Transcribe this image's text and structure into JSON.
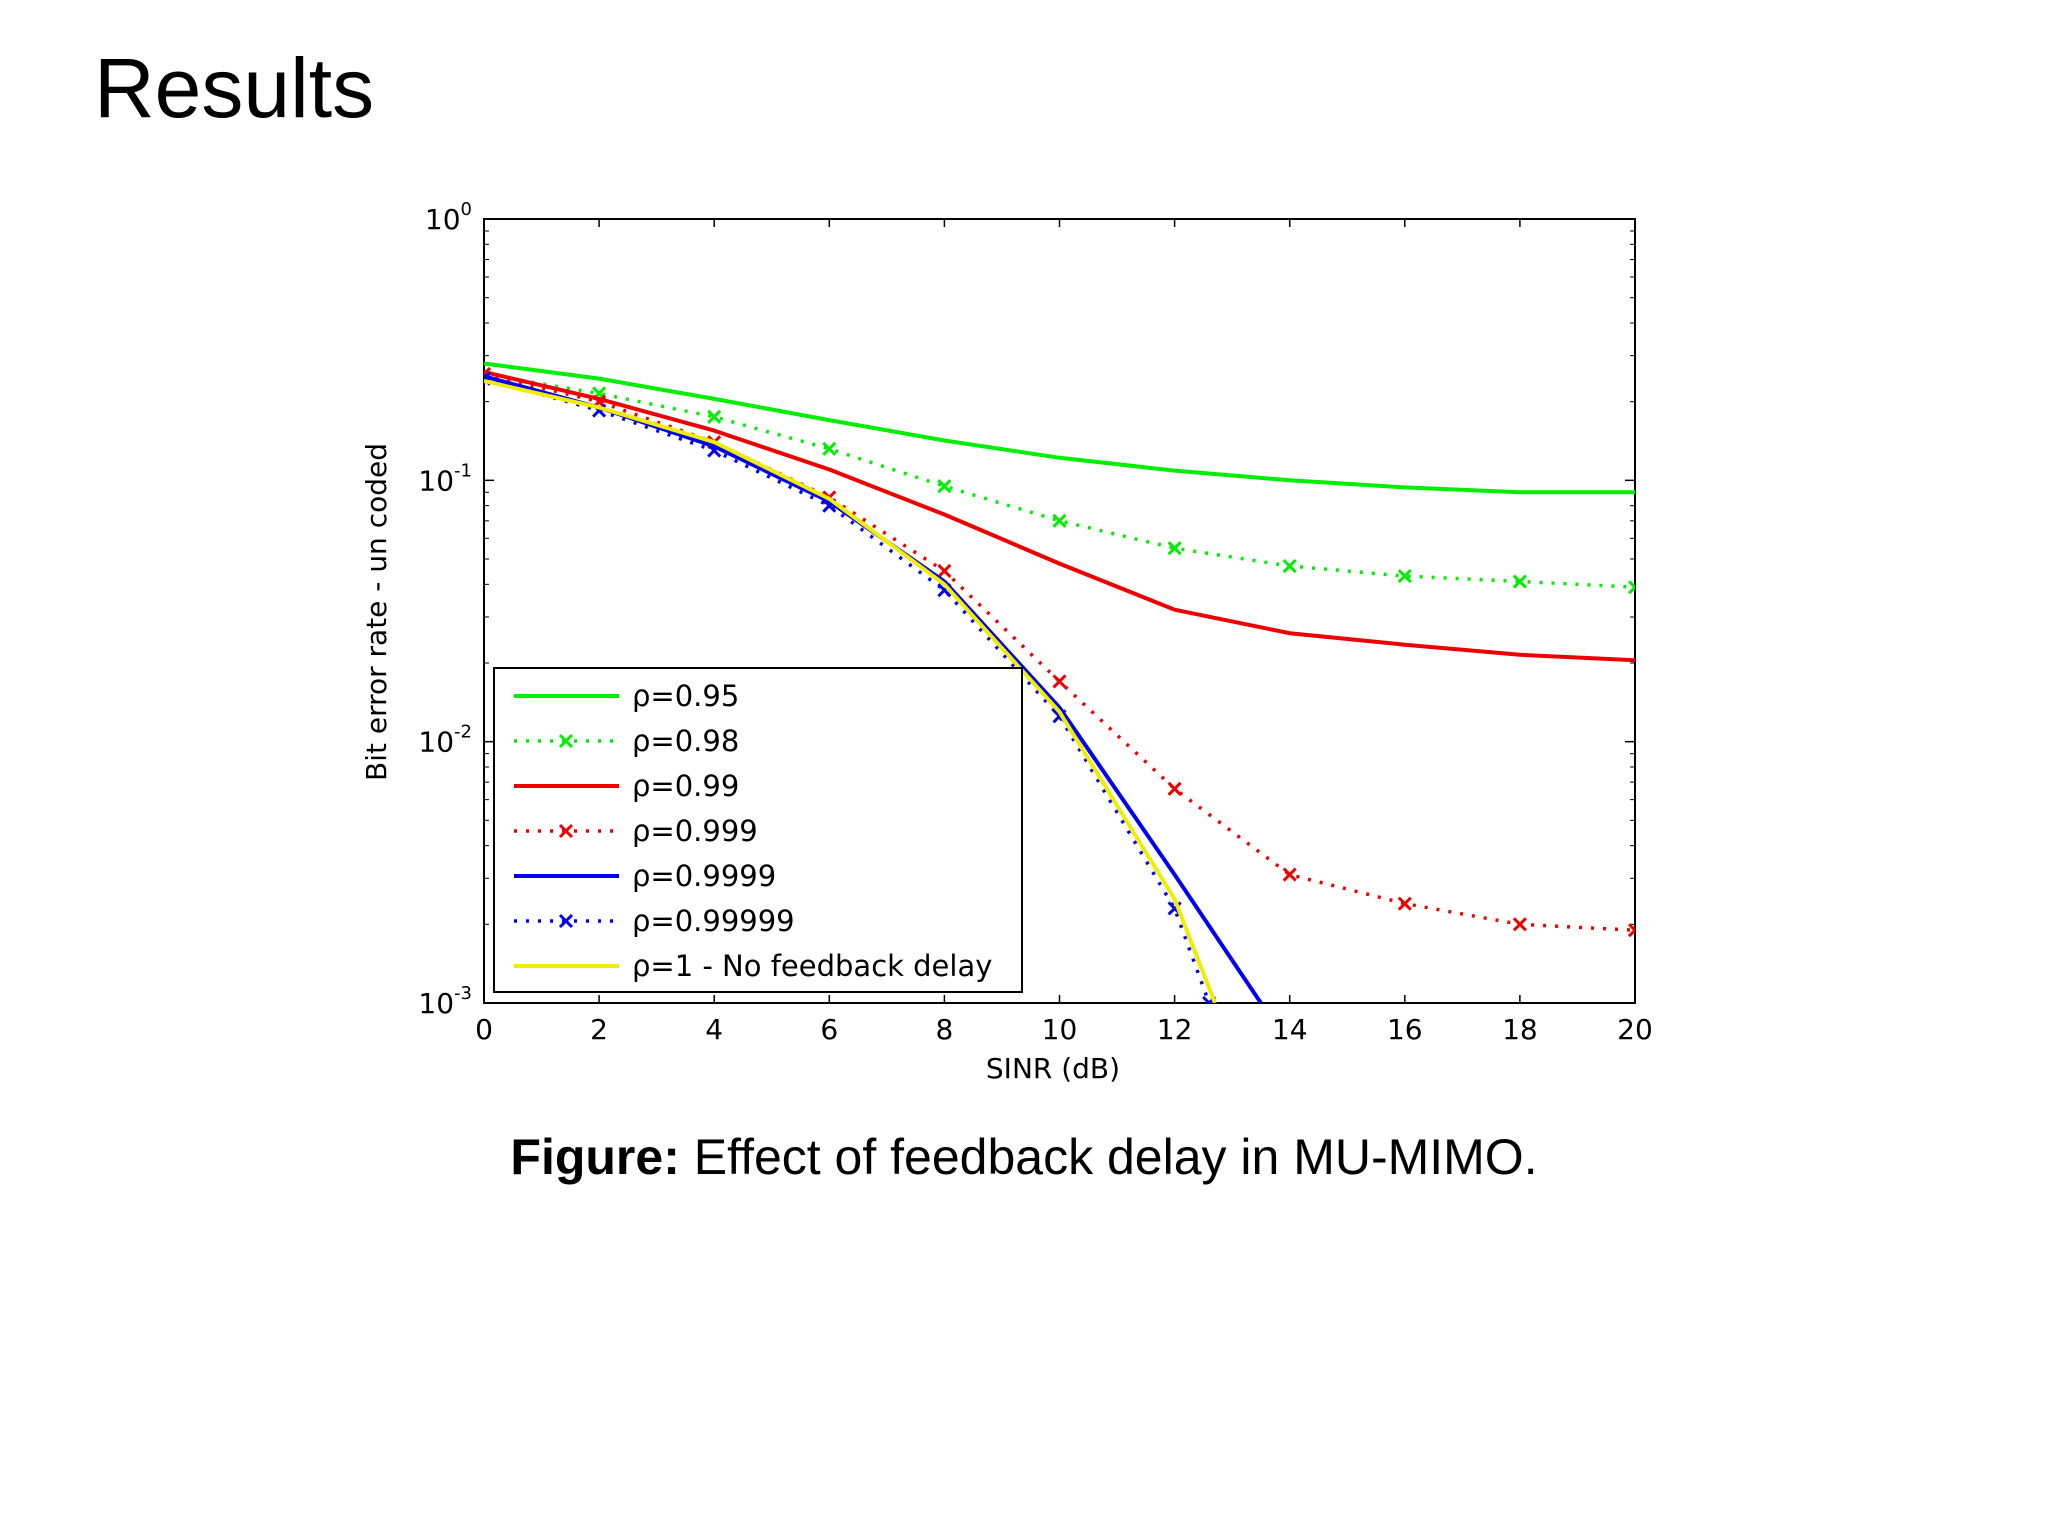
{
  "slide": {
    "title": "Results",
    "caption_label": "Figure:",
    "caption_text": " Effect of feedback delay in MU-MIMO."
  },
  "chart_data": {
    "type": "line",
    "title": "",
    "xlabel": "SINR (dB)",
    "ylabel": "Bit error rate - un coded",
    "x_scale": "linear",
    "y_scale": "log",
    "xlim": [
      0,
      20
    ],
    "ylim": [
      0.001,
      1
    ],
    "x_ticks": [
      0,
      2,
      4,
      6,
      8,
      10,
      12,
      14,
      16,
      18,
      20
    ],
    "y_tick_labels": [
      {
        "base": "10",
        "exp": "0",
        "value": 1
      },
      {
        "base": "10",
        "exp": "-1",
        "value": 0.1
      },
      {
        "base": "10",
        "exp": "-2",
        "value": 0.01
      },
      {
        "base": "10",
        "exp": "-3",
        "value": 0.001
      }
    ],
    "grid": false,
    "legend_position": "bottom-left",
    "series": [
      {
        "name": "ρ=0.95",
        "color": "#00ee00",
        "style": "solid",
        "marker": "none",
        "x": [
          0,
          2,
          4,
          6,
          8,
          10,
          12,
          14,
          16,
          18,
          20
        ],
        "y": [
          0.28,
          0.245,
          0.205,
          0.17,
          0.142,
          0.122,
          0.109,
          0.1,
          0.094,
          0.09,
          0.09
        ]
      },
      {
        "name": "ρ=0.98",
        "color": "#00ee00",
        "style": "dotted",
        "marker": "x",
        "x": [
          0,
          2,
          4,
          6,
          8,
          10,
          12,
          14,
          16,
          18,
          20
        ],
        "y": [
          0.255,
          0.215,
          0.175,
          0.132,
          0.095,
          0.07,
          0.055,
          0.047,
          0.043,
          0.041,
          0.039
        ]
      },
      {
        "name": "ρ=0.99",
        "color": "#ee0000",
        "style": "solid",
        "marker": "none",
        "x": [
          0,
          2,
          4,
          6,
          8,
          10,
          12,
          14,
          16,
          18,
          20
        ],
        "y": [
          0.26,
          0.205,
          0.155,
          0.11,
          0.074,
          0.048,
          0.032,
          0.026,
          0.0235,
          0.0215,
          0.0205
        ]
      },
      {
        "name": "ρ=0.999",
        "color": "#ee0000",
        "style": "dotted",
        "marker": "x",
        "x": [
          0,
          2,
          4,
          6,
          8,
          10,
          12,
          14,
          16,
          18,
          20
        ],
        "y": [
          0.255,
          0.2,
          0.14,
          0.086,
          0.045,
          0.017,
          0.0066,
          0.0031,
          0.0024,
          0.002,
          0.0019
        ]
      },
      {
        "name": "ρ=0.9999",
        "color": "#0000ee",
        "style": "solid",
        "marker": "none",
        "x": [
          0,
          2,
          4,
          6,
          8,
          10,
          12,
          13.5
        ],
        "y": [
          0.25,
          0.19,
          0.135,
          0.083,
          0.041,
          0.0135,
          0.0031,
          0.001
        ]
      },
      {
        "name": "ρ=0.99999",
        "color": "#0000ee",
        "style": "dotted",
        "marker": "x",
        "x": [
          0,
          2,
          4,
          6,
          8,
          10,
          12,
          12.6
        ],
        "y": [
          0.245,
          0.185,
          0.13,
          0.08,
          0.038,
          0.0125,
          0.0023,
          0.001
        ]
      },
      {
        "name": "ρ=1 - No feedback delay",
        "color": "#f0ee00",
        "style": "solid",
        "marker": "none",
        "x": [
          0,
          2,
          4,
          6,
          8,
          10,
          12,
          12.7
        ],
        "y": [
          0.24,
          0.19,
          0.14,
          0.085,
          0.04,
          0.013,
          0.0025,
          0.001
        ]
      }
    ]
  }
}
